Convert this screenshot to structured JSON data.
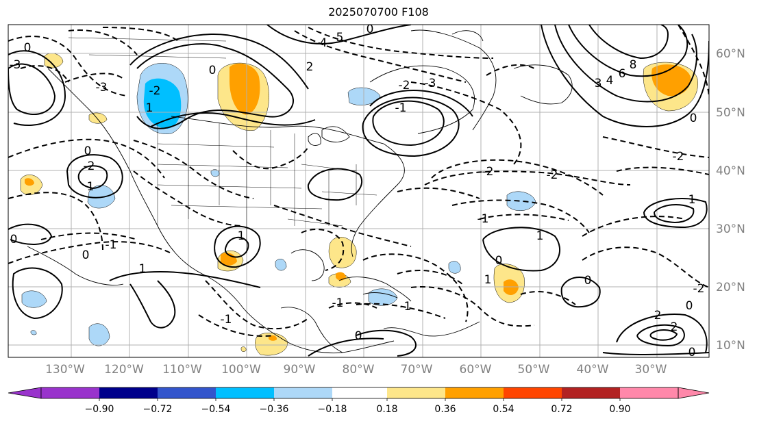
{
  "title": "2025070700 F108",
  "map": {
    "lon_labels": [
      "130°W",
      "120°W",
      "110°W",
      "100°W",
      "90°W",
      "80°W",
      "70°W",
      "60°W",
      "50°W",
      "40°W",
      "30°W"
    ],
    "lat_labels": [
      "60°N",
      "50°N",
      "40°N",
      "30°N",
      "20°N",
      "10°N"
    ],
    "label_color": "#808080"
  },
  "contour_labels": [
    "0",
    "-3",
    "-2",
    "1",
    "0",
    "4",
    "-5",
    "2",
    "-2",
    "-3",
    "0",
    "-3",
    "-1",
    "6",
    "8",
    "3",
    "4",
    "0",
    "-2",
    "-2",
    "1",
    "-2",
    "-2",
    "-1",
    "1",
    "0",
    "1",
    "1",
    "0",
    "-1",
    "0",
    "1",
    "-1",
    "0",
    "1",
    "2",
    "0",
    "-2",
    "0",
    "2",
    "0",
    "0",
    "-1",
    "-1"
  ],
  "colorbar": {
    "ticks": [
      "−0.90",
      "−0.72",
      "−0.54",
      "−0.36",
      "−0.18",
      "0.18",
      "0.36",
      "0.54",
      "0.72",
      "0.90"
    ],
    "colors": [
      "#9933cc",
      "#00008b",
      "#3355cc",
      "#00bfff",
      "#add8f8",
      "#ffffff",
      "#fde68a",
      "#ffa000",
      "#ff4500",
      "#b22222",
      "#ff88aa"
    ]
  }
}
